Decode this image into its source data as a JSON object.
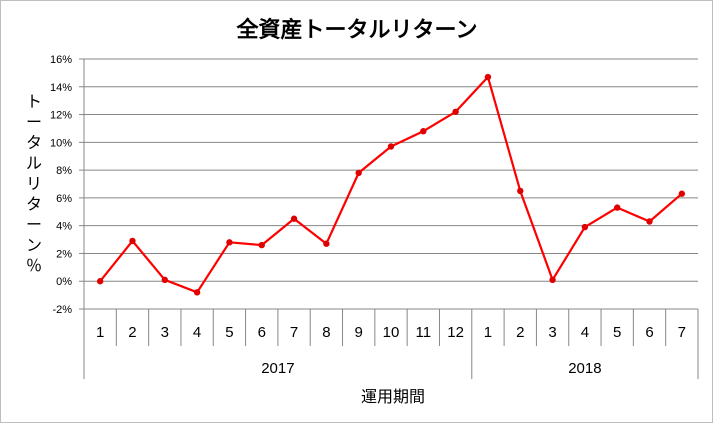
{
  "chart_data": {
    "type": "line",
    "title": "全資産トータルリターン",
    "xlabel": "運用期間",
    "ylabel": "トータルリターン％",
    "ylim": [
      -2,
      16
    ],
    "ytick_step": 2,
    "ytick_suffix": "%",
    "grid": true,
    "legend": "none",
    "categories": [
      "1",
      "2",
      "3",
      "4",
      "5",
      "6",
      "7",
      "8",
      "9",
      "10",
      "11",
      "12",
      "1",
      "2",
      "3",
      "4",
      "5",
      "6",
      "7"
    ],
    "groups": [
      {
        "label": "2017",
        "count": 12
      },
      {
        "label": "2018",
        "count": 7
      }
    ],
    "series": [
      {
        "values": [
          0.0,
          2.9,
          0.1,
          -0.8,
          2.8,
          2.6,
          4.5,
          2.7,
          7.8,
          9.7,
          10.8,
          12.2,
          14.7,
          6.5,
          0.1,
          3.9,
          5.3,
          4.3,
          6.3
        ]
      }
    ],
    "colors": {
      "line": "#ff0000",
      "marker": "#e00000",
      "grid": "#878787",
      "axis": "#878787"
    }
  }
}
